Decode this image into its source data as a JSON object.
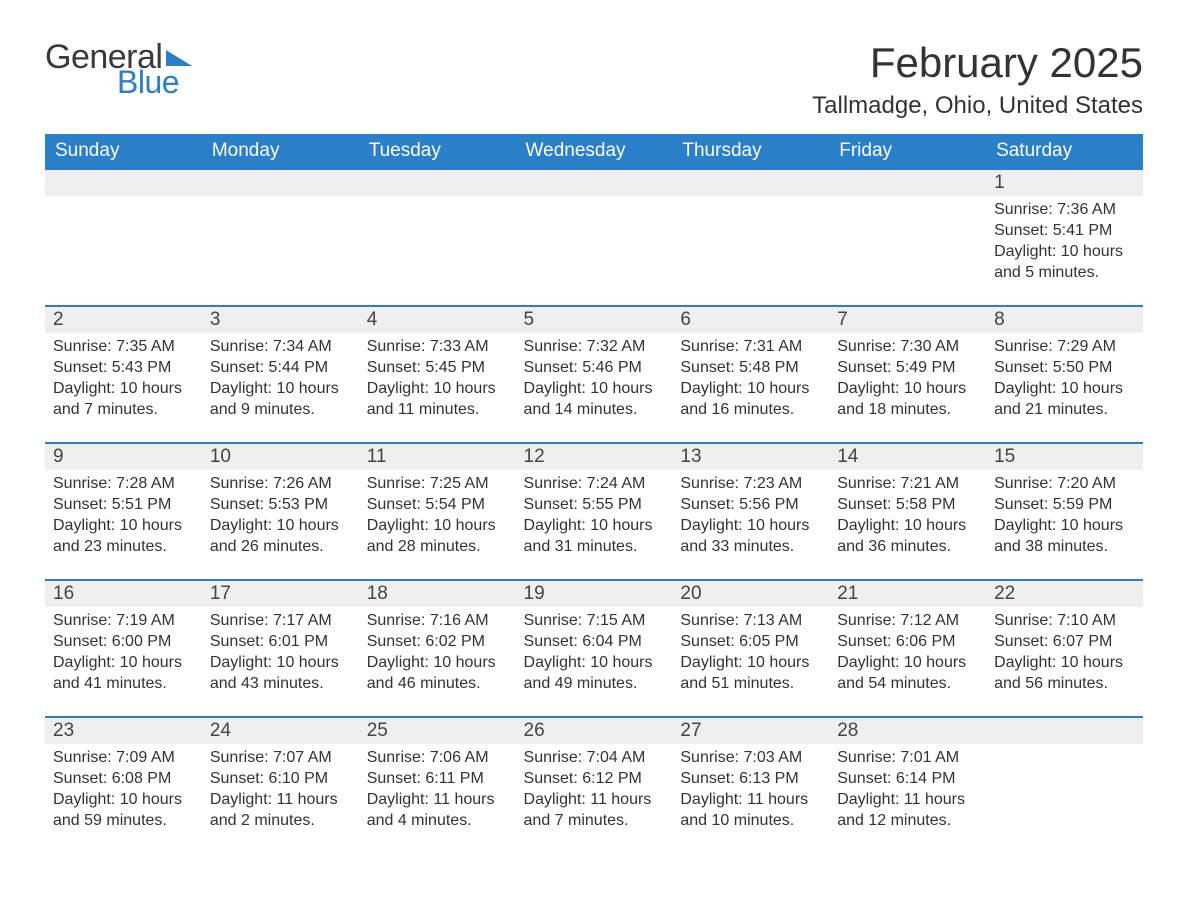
{
  "logo": {
    "word1": "General",
    "word2": "Blue"
  },
  "header": {
    "month_title": "February 2025",
    "location": "Tallmadge, Ohio, United States"
  },
  "colors": {
    "header_bg": "#2a7fc9",
    "header_text": "#ffffff",
    "daynum_bg": "#efefef",
    "row_border": "#2a7fc9",
    "body_text": "#333333"
  },
  "weekdays": [
    "Sunday",
    "Monday",
    "Tuesday",
    "Wednesday",
    "Thursday",
    "Friday",
    "Saturday"
  ],
  "weeks": [
    [
      null,
      null,
      null,
      null,
      null,
      null,
      {
        "day": "1",
        "sunrise": "Sunrise: 7:36 AM",
        "sunset": "Sunset: 5:41 PM",
        "daylight1": "Daylight: 10 hours",
        "daylight2": "and 5 minutes."
      }
    ],
    [
      {
        "day": "2",
        "sunrise": "Sunrise: 7:35 AM",
        "sunset": "Sunset: 5:43 PM",
        "daylight1": "Daylight: 10 hours",
        "daylight2": "and 7 minutes."
      },
      {
        "day": "3",
        "sunrise": "Sunrise: 7:34 AM",
        "sunset": "Sunset: 5:44 PM",
        "daylight1": "Daylight: 10 hours",
        "daylight2": "and 9 minutes."
      },
      {
        "day": "4",
        "sunrise": "Sunrise: 7:33 AM",
        "sunset": "Sunset: 5:45 PM",
        "daylight1": "Daylight: 10 hours",
        "daylight2": "and 11 minutes."
      },
      {
        "day": "5",
        "sunrise": "Sunrise: 7:32 AM",
        "sunset": "Sunset: 5:46 PM",
        "daylight1": "Daylight: 10 hours",
        "daylight2": "and 14 minutes."
      },
      {
        "day": "6",
        "sunrise": "Sunrise: 7:31 AM",
        "sunset": "Sunset: 5:48 PM",
        "daylight1": "Daylight: 10 hours",
        "daylight2": "and 16 minutes."
      },
      {
        "day": "7",
        "sunrise": "Sunrise: 7:30 AM",
        "sunset": "Sunset: 5:49 PM",
        "daylight1": "Daylight: 10 hours",
        "daylight2": "and 18 minutes."
      },
      {
        "day": "8",
        "sunrise": "Sunrise: 7:29 AM",
        "sunset": "Sunset: 5:50 PM",
        "daylight1": "Daylight: 10 hours",
        "daylight2": "and 21 minutes."
      }
    ],
    [
      {
        "day": "9",
        "sunrise": "Sunrise: 7:28 AM",
        "sunset": "Sunset: 5:51 PM",
        "daylight1": "Daylight: 10 hours",
        "daylight2": "and 23 minutes."
      },
      {
        "day": "10",
        "sunrise": "Sunrise: 7:26 AM",
        "sunset": "Sunset: 5:53 PM",
        "daylight1": "Daylight: 10 hours",
        "daylight2": "and 26 minutes."
      },
      {
        "day": "11",
        "sunrise": "Sunrise: 7:25 AM",
        "sunset": "Sunset: 5:54 PM",
        "daylight1": "Daylight: 10 hours",
        "daylight2": "and 28 minutes."
      },
      {
        "day": "12",
        "sunrise": "Sunrise: 7:24 AM",
        "sunset": "Sunset: 5:55 PM",
        "daylight1": "Daylight: 10 hours",
        "daylight2": "and 31 minutes."
      },
      {
        "day": "13",
        "sunrise": "Sunrise: 7:23 AM",
        "sunset": "Sunset: 5:56 PM",
        "daylight1": "Daylight: 10 hours",
        "daylight2": "and 33 minutes."
      },
      {
        "day": "14",
        "sunrise": "Sunrise: 7:21 AM",
        "sunset": "Sunset: 5:58 PM",
        "daylight1": "Daylight: 10 hours",
        "daylight2": "and 36 minutes."
      },
      {
        "day": "15",
        "sunrise": "Sunrise: 7:20 AM",
        "sunset": "Sunset: 5:59 PM",
        "daylight1": "Daylight: 10 hours",
        "daylight2": "and 38 minutes."
      }
    ],
    [
      {
        "day": "16",
        "sunrise": "Sunrise: 7:19 AM",
        "sunset": "Sunset: 6:00 PM",
        "daylight1": "Daylight: 10 hours",
        "daylight2": "and 41 minutes."
      },
      {
        "day": "17",
        "sunrise": "Sunrise: 7:17 AM",
        "sunset": "Sunset: 6:01 PM",
        "daylight1": "Daylight: 10 hours",
        "daylight2": "and 43 minutes."
      },
      {
        "day": "18",
        "sunrise": "Sunrise: 7:16 AM",
        "sunset": "Sunset: 6:02 PM",
        "daylight1": "Daylight: 10 hours",
        "daylight2": "and 46 minutes."
      },
      {
        "day": "19",
        "sunrise": "Sunrise: 7:15 AM",
        "sunset": "Sunset: 6:04 PM",
        "daylight1": "Daylight: 10 hours",
        "daylight2": "and 49 minutes."
      },
      {
        "day": "20",
        "sunrise": "Sunrise: 7:13 AM",
        "sunset": "Sunset: 6:05 PM",
        "daylight1": "Daylight: 10 hours",
        "daylight2": "and 51 minutes."
      },
      {
        "day": "21",
        "sunrise": "Sunrise: 7:12 AM",
        "sunset": "Sunset: 6:06 PM",
        "daylight1": "Daylight: 10 hours",
        "daylight2": "and 54 minutes."
      },
      {
        "day": "22",
        "sunrise": "Sunrise: 7:10 AM",
        "sunset": "Sunset: 6:07 PM",
        "daylight1": "Daylight: 10 hours",
        "daylight2": "and 56 minutes."
      }
    ],
    [
      {
        "day": "23",
        "sunrise": "Sunrise: 7:09 AM",
        "sunset": "Sunset: 6:08 PM",
        "daylight1": "Daylight: 10 hours",
        "daylight2": "and 59 minutes."
      },
      {
        "day": "24",
        "sunrise": "Sunrise: 7:07 AM",
        "sunset": "Sunset: 6:10 PM",
        "daylight1": "Daylight: 11 hours",
        "daylight2": "and 2 minutes."
      },
      {
        "day": "25",
        "sunrise": "Sunrise: 7:06 AM",
        "sunset": "Sunset: 6:11 PM",
        "daylight1": "Daylight: 11 hours",
        "daylight2": "and 4 minutes."
      },
      {
        "day": "26",
        "sunrise": "Sunrise: 7:04 AM",
        "sunset": "Sunset: 6:12 PM",
        "daylight1": "Daylight: 11 hours",
        "daylight2": "and 7 minutes."
      },
      {
        "day": "27",
        "sunrise": "Sunrise: 7:03 AM",
        "sunset": "Sunset: 6:13 PM",
        "daylight1": "Daylight: 11 hours",
        "daylight2": "and 10 minutes."
      },
      {
        "day": "28",
        "sunrise": "Sunrise: 7:01 AM",
        "sunset": "Sunset: 6:14 PM",
        "daylight1": "Daylight: 11 hours",
        "daylight2": "and 12 minutes."
      },
      null
    ]
  ]
}
